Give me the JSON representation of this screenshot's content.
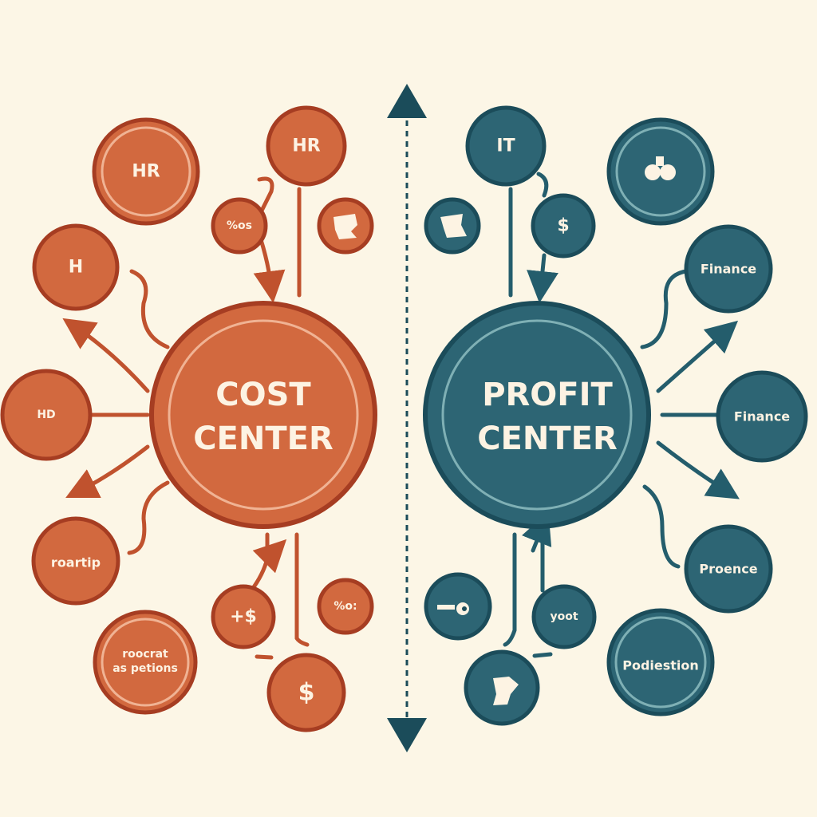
{
  "colors": {
    "background": "#fcf6e6",
    "cost": "#d2693f",
    "cost_border": "#a63d22",
    "profit": "#2d6574",
    "profit_border": "#1b4c5a"
  },
  "cost_center": {
    "title_line1": "COST",
    "title_line2": "CENTER",
    "nodes": [
      {
        "label": "HR"
      },
      {
        "label": "HR"
      },
      {
        "label": "%os"
      },
      {
        "icon": "puzzle-icon"
      },
      {
        "label": "H"
      },
      {
        "label": "HD"
      },
      {
        "label": "roartip"
      },
      {
        "label_line1": "roocrat",
        "label_line2": "as petions"
      },
      {
        "label": "+$"
      },
      {
        "label": "%o:"
      },
      {
        "label": "$"
      }
    ]
  },
  "profit_center": {
    "title_line1": "PROFIT",
    "title_line2": "CENTER",
    "nodes": [
      {
        "label": "IT"
      },
      {
        "icon": "money-bag-icon"
      },
      {
        "icon": "handshake-icon"
      },
      {
        "label": "$"
      },
      {
        "label": "Finance"
      },
      {
        "label": "Finance"
      },
      {
        "label": "Proence"
      },
      {
        "label": "Podiestion"
      },
      {
        "icon": "key-icon"
      },
      {
        "label": "yoot"
      },
      {
        "icon": "map-icon"
      }
    ]
  }
}
